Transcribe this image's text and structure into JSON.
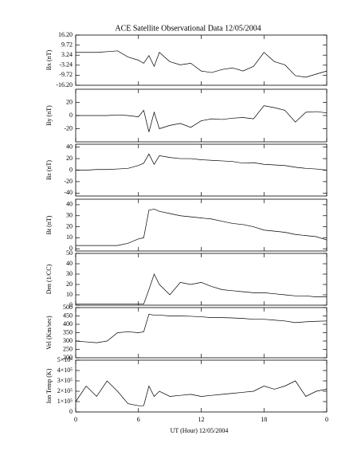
{
  "chart_data": [
    {
      "type": "line",
      "title": "ACE Satellite Observational Data   12/05/2004",
      "ylabel": "Bx (nT)",
      "color": "#000000",
      "x": [
        0,
        1,
        2,
        3,
        4,
        5,
        6,
        6.5,
        7,
        7.5,
        8,
        9,
        10,
        11,
        12,
        13,
        14,
        15,
        16,
        17,
        18,
        19,
        20,
        21,
        22,
        23,
        24
      ],
      "values": [
        5,
        5,
        5,
        5.5,
        6,
        2,
        0,
        -2,
        3,
        -4,
        5,
        -1,
        -3,
        -2,
        -7,
        -8,
        -6,
        -5,
        -7,
        -4,
        5,
        -1,
        -3,
        -10,
        -11,
        -9,
        -7
      ],
      "xlim": [
        0,
        24
      ],
      "xticks": [
        0,
        6,
        12,
        18,
        24
      ],
      "ylim": [
        -16.2,
        16.2
      ],
      "yticks": [
        {
          "value": 16.2,
          "label": "16.20"
        },
        9.72,
        3.24,
        -3.24,
        -9.72,
        {
          "value": -16.2,
          "label": "-16.20"
        }
      ]
    },
    {
      "type": "line",
      "ylabel": "By (nT)",
      "color": "#000000",
      "x": [
        0,
        1,
        2,
        3,
        4,
        5,
        6,
        6.5,
        7,
        7.5,
        8,
        9,
        10,
        11,
        12,
        13,
        14,
        15,
        16,
        17,
        18,
        19,
        20,
        21,
        22,
        23,
        24
      ],
      "values": [
        0,
        0,
        0,
        0,
        1,
        0,
        -2,
        8,
        -25,
        5,
        -20,
        -15,
        -12,
        -18,
        -8,
        -5,
        -6,
        -4,
        -3,
        -5,
        15,
        12,
        8,
        -10,
        5,
        6,
        4
      ],
      "xlim": [
        0,
        24
      ],
      "xticks": [
        0,
        6,
        12,
        18,
        24
      ],
      "ylim": [
        -40,
        40
      ],
      "yticks": [
        -20,
        0,
        20
      ]
    },
    {
      "type": "line",
      "ylabel": "Bz (nT)",
      "color": "#000000",
      "x": [
        0,
        1,
        2,
        3,
        4,
        5,
        6,
        6.5,
        7,
        7.5,
        8,
        9,
        10,
        11,
        12,
        13,
        14,
        15,
        16,
        17,
        18,
        19,
        20,
        21,
        22,
        23,
        24
      ],
      "values": [
        0,
        0,
        1,
        1,
        2,
        3,
        8,
        12,
        28,
        10,
        25,
        22,
        20,
        20,
        18,
        17,
        16,
        15,
        12,
        13,
        10,
        9,
        8,
        5,
        3,
        2,
        0
      ],
      "xlim": [
        0,
        24
      ],
      "xticks": [
        0,
        6,
        12,
        18,
        24
      ],
      "ylim": [
        -45,
        45
      ],
      "yticks": [
        -40,
        -20,
        0,
        20,
        40
      ]
    },
    {
      "type": "line",
      "ylabel": "Bt (nT)",
      "color": "#000000",
      "x": [
        0,
        1,
        2,
        3,
        4,
        5,
        6,
        6.5,
        7,
        7.5,
        8,
        9,
        10,
        11,
        12,
        13,
        14,
        15,
        16,
        17,
        18,
        19,
        20,
        21,
        22,
        23,
        24
      ],
      "values": [
        3,
        3,
        3,
        3,
        3,
        5,
        9,
        10,
        35,
        36,
        34,
        32,
        30,
        29,
        28,
        27,
        25,
        23,
        22,
        20,
        17,
        16,
        15,
        13,
        12,
        11,
        8
      ],
      "xlim": [
        0,
        24
      ],
      "xticks": [
        0,
        6,
        12,
        18,
        24
      ],
      "ylim": [
        -2,
        45
      ],
      "yticks": [
        0,
        10,
        20,
        30,
        40
      ]
    },
    {
      "type": "line",
      "ylabel": "Den (1/CC)",
      "color": "#000000",
      "x": [
        0,
        1,
        2,
        3,
        4,
        5,
        6,
        6.5,
        7,
        7.5,
        8,
        9,
        10,
        11,
        12,
        13,
        14,
        15,
        16,
        17,
        18,
        19,
        20,
        21,
        22,
        23,
        24
      ],
      "values": [
        1,
        1,
        1,
        1,
        1,
        1,
        1,
        1,
        15,
        30,
        20,
        10,
        22,
        20,
        22,
        18,
        15,
        14,
        13,
        12,
        12,
        11,
        10,
        9,
        9,
        8,
        8
      ],
      "xlim": [
        0,
        24
      ],
      "xticks": [
        0,
        6,
        12,
        18,
        24
      ],
      "ylim": [
        0,
        50
      ],
      "yticks": [
        0,
        10,
        20,
        30,
        40,
        50
      ]
    },
    {
      "type": "line",
      "ylabel": "Vel (Km/sec)",
      "color": "#000000",
      "x": [
        0,
        1,
        2,
        3,
        4,
        5,
        6,
        6.5,
        7,
        7.5,
        8,
        9,
        10,
        11,
        12,
        13,
        14,
        15,
        16,
        17,
        18,
        19,
        20,
        21,
        22,
        23,
        24
      ],
      "values": [
        300,
        295,
        290,
        300,
        350,
        355,
        350,
        355,
        460,
        455,
        455,
        450,
        450,
        448,
        445,
        440,
        440,
        438,
        435,
        430,
        430,
        425,
        420,
        410,
        415,
        418,
        420
      ],
      "xlim": [
        0,
        24
      ],
      "xticks": [
        0,
        6,
        12,
        18,
        24
      ],
      "ylim": [
        200,
        500
      ],
      "yticks": [
        200,
        250,
        300,
        350,
        400,
        450,
        500
      ]
    },
    {
      "type": "line",
      "ylabel": "Ion Temp (K)",
      "xlabel": "UT (Hour)   12/05/2004",
      "color": "#000000",
      "x": [
        0,
        1,
        2,
        3,
        4,
        5,
        6,
        6.5,
        7,
        7.5,
        8,
        9,
        10,
        11,
        12,
        13,
        14,
        15,
        16,
        17,
        18,
        19,
        20,
        21,
        22,
        23,
        24
      ],
      "values": [
        100000,
        250000,
        150000,
        300000,
        200000,
        80000,
        60000,
        60000,
        250000,
        150000,
        200000,
        150000,
        160000,
        170000,
        150000,
        160000,
        170000,
        180000,
        190000,
        200000,
        250000,
        220000,
        250000,
        300000,
        150000,
        200000,
        220000
      ],
      "xlim": [
        0,
        24
      ],
      "xticks": [
        0,
        6,
        12,
        18,
        {
          "value": 24,
          "label": "0"
        }
      ],
      "ylim": [
        0,
        500000
      ],
      "yticks": [
        0,
        {
          "value": 100000,
          "label": "1×10⁵"
        },
        {
          "value": 200000,
          "label": "2×10⁵"
        },
        {
          "value": 300000,
          "label": "3×10⁵"
        },
        {
          "value": 400000,
          "label": "4×10⁵"
        },
        {
          "value": 500000,
          "label": "5×10⁵"
        }
      ]
    }
  ]
}
